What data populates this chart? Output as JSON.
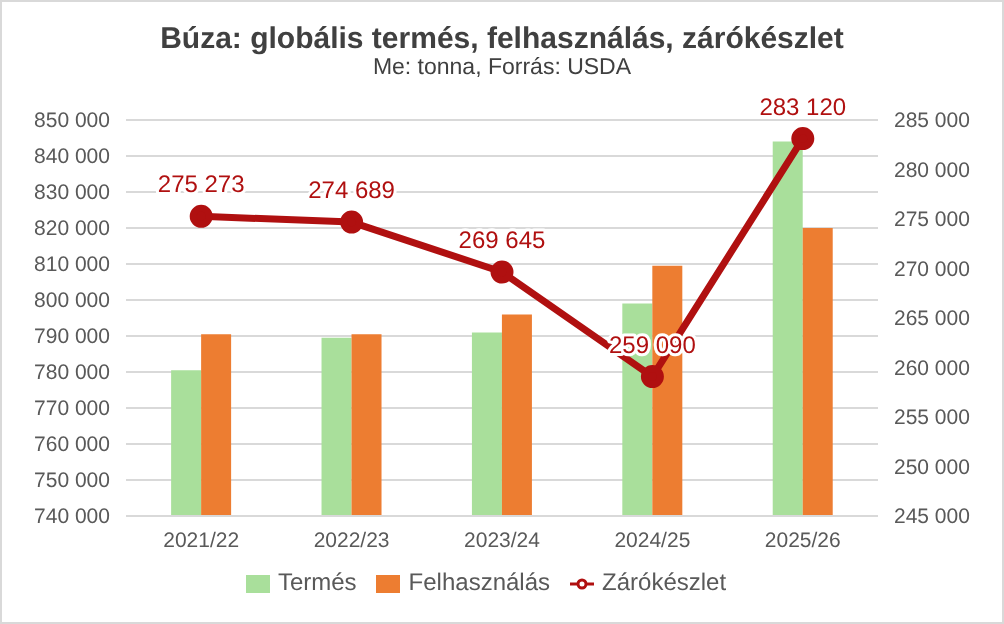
{
  "chart_data": {
    "type": "bar",
    "title": "Búza: globális termés, felhasználás, zárókészlet",
    "subtitle": "Me: tonna, Forrás: USDA",
    "categories": [
      "2021/22",
      "2022/23",
      "2023/24",
      "2024/25",
      "2025/26"
    ],
    "series": [
      {
        "name": "Termés",
        "color": "#a9df9b",
        "values": [
          780500,
          789500,
          791000,
          799000,
          844000
        ]
      },
      {
        "name": "Felhasználás",
        "color": "#ed7d31",
        "values": [
          790500,
          790500,
          796000,
          809500,
          820000
        ]
      },
      {
        "name": "Zárókészlet",
        "type": "line",
        "axis": "y2",
        "color": "#b01010",
        "marker": "circle",
        "values": [
          275273,
          274689,
          269645,
          259090,
          283120
        ],
        "value_labels": [
          "275 273",
          "274 689",
          "269 645",
          "259 090",
          "283 120"
        ]
      }
    ],
    "ylim": [
      740000,
      850000
    ],
    "yticks": [
      {
        "value": 740000,
        "label": "740 000"
      },
      {
        "value": 750000,
        "label": "750 000"
      },
      {
        "value": 760000,
        "label": "760 000"
      },
      {
        "value": 770000,
        "label": "770 000"
      },
      {
        "value": 780000,
        "label": "780 000"
      },
      {
        "value": 790000,
        "label": "790 000"
      },
      {
        "value": 800000,
        "label": "800 000"
      },
      {
        "value": 810000,
        "label": "810 000"
      },
      {
        "value": 820000,
        "label": "820 000"
      },
      {
        "value": 830000,
        "label": "830 000"
      },
      {
        "value": 840000,
        "label": "840 000"
      },
      {
        "value": 850000,
        "label": "850 000"
      }
    ],
    "y2lim": [
      245000,
      285000
    ],
    "y2ticks": [
      {
        "value": 245000,
        "label": "245 000"
      },
      {
        "value": 250000,
        "label": "250 000"
      },
      {
        "value": 255000,
        "label": "255 000"
      },
      {
        "value": 260000,
        "label": "260 000"
      },
      {
        "value": 265000,
        "label": "265 000"
      },
      {
        "value": 270000,
        "label": "270 000"
      },
      {
        "value": 275000,
        "label": "275 000"
      },
      {
        "value": 280000,
        "label": "280 000"
      },
      {
        "value": 285000,
        "label": "285 000"
      }
    ],
    "grid": "y",
    "legend": "bottom"
  }
}
